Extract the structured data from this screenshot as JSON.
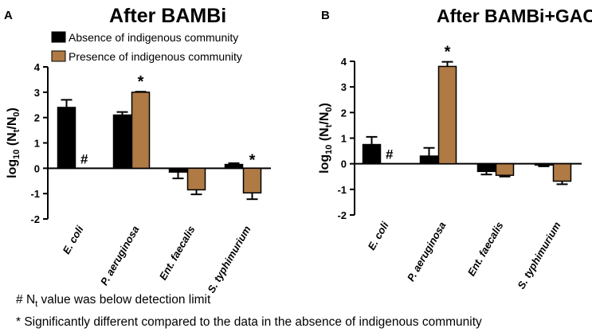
{
  "colors": {
    "absence": "#000000",
    "presence": "#b07a45",
    "axis": "#000000",
    "error": "#000000"
  },
  "legend": {
    "absence": "Absence of indigenous community",
    "presence": "Presence of indigenous community"
  },
  "footnotes": {
    "hash_symbol": "#",
    "hash_n": "N",
    "hash_sub": "t",
    "hash_rest": " value was below detection limit",
    "star": "* Significantly different compared to the data in the absence of indigenous community"
  },
  "chart_data": [
    {
      "type": "bar",
      "panel": "A",
      "title": "After BAMBi",
      "ylabel": "log10 (Nt/N0)",
      "ylim": [
        -2,
        4
      ],
      "yticks": [
        "-2",
        "-1",
        "0",
        "1",
        "2",
        "3",
        "4"
      ],
      "categories": [
        "E. coli",
        "P. aeruginosa",
        "Ent. faecalis",
        "S. typhimurium"
      ],
      "series": [
        {
          "name": "Absence of indigenous community",
          "values": [
            2.4,
            2.1,
            -0.15,
            0.15
          ],
          "errors": [
            0.3,
            0.12,
            0.25,
            0.05
          ]
        },
        {
          "name": "Presence of indigenous community",
          "values": [
            null,
            3.0,
            -0.85,
            -0.97
          ],
          "errors": [
            null,
            0.02,
            0.18,
            0.25
          ]
        }
      ],
      "annotations": [
        {
          "category": 0,
          "text": "#"
        },
        {
          "category": 1,
          "text": "*"
        },
        {
          "category": 3,
          "text": "*"
        }
      ]
    },
    {
      "type": "bar",
      "panel": "B",
      "title": "After BAMBi+GAC",
      "ylabel": "log10 (Nt/N0)",
      "ylim": [
        -2,
        4
      ],
      "yticks": [
        "-2",
        "-1",
        "0",
        "1",
        "2",
        "3",
        "4"
      ],
      "categories": [
        "E. coli",
        "P. aeruginosa",
        "Ent. faecalis",
        "S. typhimurium"
      ],
      "series": [
        {
          "name": "Absence of indigenous community",
          "values": [
            0.75,
            0.3,
            -0.3,
            -0.05
          ],
          "errors": [
            0.3,
            0.32,
            0.12,
            0.05
          ]
        },
        {
          "name": "Presence of indigenous community",
          "values": [
            null,
            3.8,
            -0.45,
            -0.68
          ],
          "errors": [
            null,
            0.18,
            0.05,
            0.12
          ]
        }
      ],
      "annotations": [
        {
          "category": 0,
          "text": "#"
        },
        {
          "category": 1,
          "text": "*"
        }
      ]
    }
  ]
}
